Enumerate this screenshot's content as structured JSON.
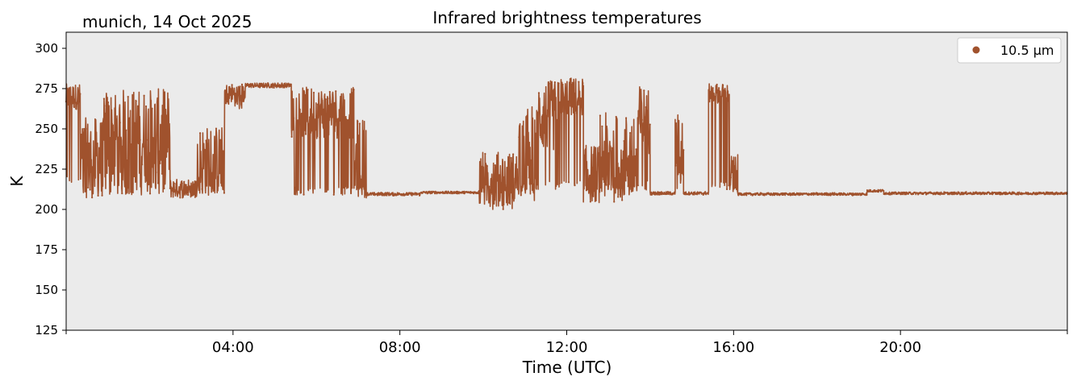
{
  "header": {
    "location_date": "munich, 14 Oct 2025"
  },
  "chart_data": {
    "type": "scatter",
    "title": "Infrared brightness temperatures",
    "xlabel": "Time (UTC)",
    "ylabel": "K",
    "xlim_hours": [
      0,
      24
    ],
    "ylim": [
      125,
      310
    ],
    "yticks": [
      125,
      150,
      175,
      200,
      225,
      250,
      275,
      300
    ],
    "xticks": [
      {
        "hour": 4,
        "label": "04:00"
      },
      {
        "hour": 8,
        "label": "08:00"
      },
      {
        "hour": 12,
        "label": "12:00"
      },
      {
        "hour": 16,
        "label": "16:00"
      },
      {
        "hour": 20,
        "label": "20:00"
      }
    ],
    "legend": {
      "position": "top-right",
      "label": "10.5 µm"
    },
    "colors": {
      "series": "#a0522d",
      "plot_bg": "#ebebeb"
    },
    "series": [
      {
        "name": "10.5 µm",
        "segments": [
          {
            "from": 0.0,
            "to": 0.35,
            "base": 270,
            "var": 8,
            "cloud_low": 215
          },
          {
            "from": 0.35,
            "to": 0.9,
            "base": 232,
            "var": 25,
            "cloud_low": 209
          },
          {
            "from": 0.9,
            "to": 2.5,
            "base": 245,
            "var": 30,
            "cloud_low": 209
          },
          {
            "from": 2.5,
            "to": 3.1,
            "base": 213,
            "var": 6,
            "cloud_low": 209
          },
          {
            "from": 3.1,
            "to": 3.8,
            "base": 230,
            "var": 22,
            "cloud_low": 210
          },
          {
            "from": 3.8,
            "to": 4.3,
            "base": 272,
            "var": 6,
            "cloud_low": 262
          },
          {
            "from": 4.3,
            "to": 5.4,
            "base": 277,
            "var": 1.5,
            "cloud_low": 275
          },
          {
            "from": 5.4,
            "to": 6.9,
            "base": 260,
            "var": 16,
            "cloud_low": 209
          },
          {
            "from": 6.9,
            "to": 7.2,
            "base": 232,
            "var": 25,
            "cloud_low": 209
          },
          {
            "from": 7.2,
            "to": 8.5,
            "base": 209.5,
            "var": 1,
            "cloud_low": 209
          },
          {
            "from": 8.5,
            "to": 9.9,
            "base": 210.5,
            "var": 0.8,
            "cloud_low": 210
          },
          {
            "from": 9.9,
            "to": 10.8,
            "base": 218,
            "var": 18,
            "cloud_low": 210
          },
          {
            "from": 10.8,
            "to": 11.3,
            "base": 235,
            "var": 30,
            "cloud_low": 210
          },
          {
            "from": 11.3,
            "to": 11.8,
            "base": 258,
            "var": 22,
            "cloud_low": 212
          },
          {
            "from": 11.8,
            "to": 12.4,
            "base": 270,
            "var": 12,
            "cloud_low": 212
          },
          {
            "from": 12.4,
            "to": 12.8,
            "base": 222,
            "var": 18,
            "cloud_low": 210
          },
          {
            "from": 12.8,
            "to": 13.7,
            "base": 232,
            "var": 28,
            "cloud_low": 210
          },
          {
            "from": 13.7,
            "to": 14.0,
            "base": 255,
            "var": 22,
            "cloud_low": 212
          },
          {
            "from": 14.0,
            "to": 14.6,
            "base": 210,
            "var": 1,
            "cloud_low": 209
          },
          {
            "from": 14.6,
            "to": 14.8,
            "base": 238,
            "var": 22,
            "cloud_low": 212
          },
          {
            "from": 14.8,
            "to": 15.4,
            "base": 210,
            "var": 1,
            "cloud_low": 209
          },
          {
            "from": 15.4,
            "to": 15.9,
            "base": 272,
            "var": 6,
            "cloud_low": 212
          },
          {
            "from": 15.9,
            "to": 16.1,
            "base": 222,
            "var": 12,
            "cloud_low": 210
          },
          {
            "from": 16.1,
            "to": 19.2,
            "base": 209.5,
            "var": 0.8,
            "cloud_low": 209
          },
          {
            "from": 19.2,
            "to": 19.6,
            "base": 211.5,
            "var": 0.8,
            "cloud_low": 210
          },
          {
            "from": 19.6,
            "to": 24.0,
            "base": 210,
            "var": 0.8,
            "cloud_low": 209
          }
        ]
      }
    ]
  }
}
